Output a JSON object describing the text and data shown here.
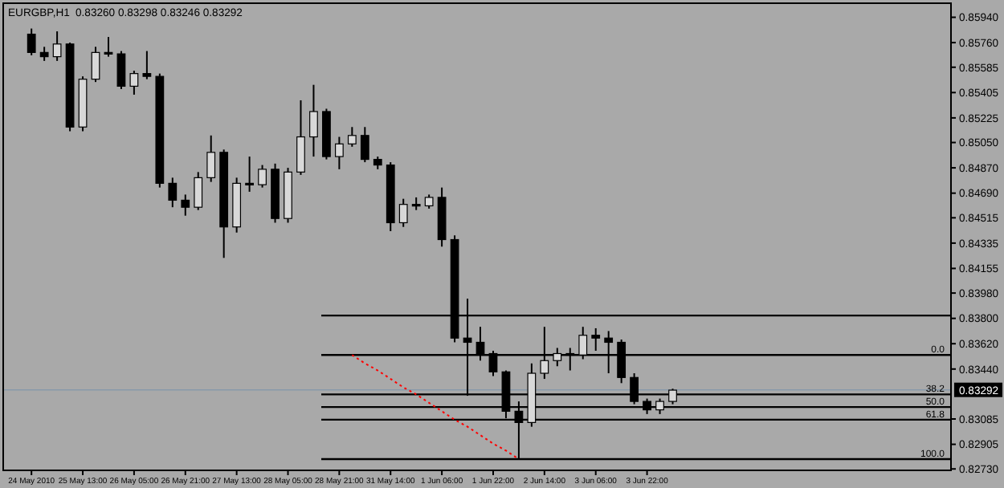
{
  "chart_data": {
    "type": "candlestick",
    "title": "EURGBP,H1",
    "subtitle": "0.83260 0.83298 0.83246 0.83292",
    "categories": [
      "24 May 2010",
      null,
      null,
      null,
      "25 May 13:00",
      null,
      null,
      null,
      "26 May 05:00",
      null,
      null,
      null,
      "26 May 21:00",
      null,
      null,
      null,
      "27 May 13:00",
      null,
      null,
      null,
      "28 May 05:00",
      null,
      null,
      null,
      "28 May 21:00",
      null,
      null,
      null,
      "31 May 14:00",
      null,
      null,
      null,
      "1 Jun 06:00",
      null,
      null,
      null,
      "1 Jun 22:00",
      null,
      null,
      null,
      "2 Jun 14:00",
      null,
      null,
      null,
      "3 Jun 06:00",
      null,
      null,
      null,
      "3 Jun 22:00",
      null,
      null,
      null,
      null,
      null,
      null,
      null,
      null,
      null,
      null,
      null,
      null,
      null,
      null,
      null,
      null,
      null,
      null,
      null,
      null,
      null,
      null,
      null
    ],
    "series": [
      {
        "type": "line",
        "color": "#ff0000",
        "line_style": "dotted",
        "values": [
          null,
          null,
          null,
          null,
          null,
          null,
          null,
          null,
          null,
          null,
          null,
          null,
          null,
          null,
          null,
          null,
          null,
          null,
          null,
          null,
          null,
          null,
          null,
          null,
          null,
          0.8354,
          0.8348,
          0.8343,
          0.8337,
          0.8331,
          0.8326,
          0.832,
          0.8314,
          0.8308,
          0.8303,
          0.8297,
          0.8291,
          0.8286,
          0.828,
          null,
          null,
          null,
          null,
          null,
          null,
          null,
          null,
          null,
          null,
          null,
          null,
          null,
          null,
          null,
          null,
          null,
          null,
          null,
          null,
          null,
          null,
          null,
          null,
          null,
          null,
          null,
          null,
          null,
          null,
          null,
          null,
          null
        ]
      }
    ],
    "color": "#000000",
    "ohlc": [
      [
        0.8582,
        0.8586,
        0.8567,
        0.8569
      ],
      [
        0.8569,
        0.8573,
        0.8563,
        0.8566
      ],
      [
        0.8566,
        0.8584,
        0.8563,
        0.8575
      ],
      [
        0.8575,
        0.8576,
        0.8513,
        0.8516
      ],
      [
        0.8516,
        0.8552,
        0.8513,
        0.855
      ],
      [
        0.855,
        0.8573,
        0.8548,
        0.8569
      ],
      [
        0.8569,
        0.858,
        0.8566,
        0.8568
      ],
      [
        0.8568,
        0.857,
        0.8543,
        0.8545
      ],
      [
        0.8545,
        0.8556,
        0.8539,
        0.8554
      ],
      [
        0.8554,
        0.857,
        0.855,
        0.8552
      ],
      [
        0.8552,
        0.8554,
        0.8473,
        0.8476
      ],
      [
        0.8476,
        0.848,
        0.8459,
        0.8464
      ],
      [
        0.8464,
        0.8468,
        0.8453,
        0.8459
      ],
      [
        0.8459,
        0.8484,
        0.8457,
        0.848
      ],
      [
        0.848,
        0.851,
        0.8477,
        0.8498
      ],
      [
        0.8498,
        0.85,
        0.8423,
        0.8445
      ],
      [
        0.8445,
        0.848,
        0.8441,
        0.8476
      ],
      [
        0.8476,
        0.8495,
        0.847,
        0.8475
      ],
      [
        0.8475,
        0.8489,
        0.8473,
        0.8486
      ],
      [
        0.8486,
        0.849,
        0.8448,
        0.8451
      ],
      [
        0.8451,
        0.8487,
        0.8448,
        0.8484
      ],
      [
        0.8484,
        0.8535,
        0.8482,
        0.8509
      ],
      [
        0.8509,
        0.8546,
        0.8495,
        0.8527
      ],
      [
        0.8527,
        0.8529,
        0.8493,
        0.8495
      ],
      [
        0.8495,
        0.8509,
        0.8486,
        0.8504
      ],
      [
        0.8504,
        0.8516,
        0.8502,
        0.851
      ],
      [
        0.851,
        0.8516,
        0.8491,
        0.8493
      ],
      [
        0.8493,
        0.8495,
        0.8486,
        0.8489
      ],
      [
        0.8489,
        0.8491,
        0.8442,
        0.8448
      ],
      [
        0.8448,
        0.8465,
        0.8445,
        0.8461
      ],
      [
        0.8461,
        0.8466,
        0.8457,
        0.846
      ],
      [
        0.846,
        0.8468,
        0.8458,
        0.8466
      ],
      [
        0.8466,
        0.8473,
        0.8431,
        0.8436
      ],
      [
        0.8436,
        0.8439,
        0.8363,
        0.8366
      ],
      [
        0.8366,
        0.8394,
        0.8325,
        0.8363
      ],
      [
        0.8363,
        0.8374,
        0.835,
        0.8355
      ],
      [
        0.8355,
        0.8357,
        0.8339,
        0.8342
      ],
      [
        0.8342,
        0.8343,
        0.8309,
        0.8314
      ],
      [
        0.8314,
        0.8321,
        0.828,
        0.8306
      ],
      [
        0.8306,
        0.8348,
        0.8303,
        0.8341
      ],
      [
        0.8341,
        0.8374,
        0.8337,
        0.835
      ],
      [
        0.835,
        0.8359,
        0.8346,
        0.8355
      ],
      [
        0.8355,
        0.8359,
        0.8343,
        0.8354
      ],
      [
        0.8354,
        0.8374,
        0.8351,
        0.8368
      ],
      [
        0.8368,
        0.8373,
        0.8357,
        0.8366
      ],
      [
        0.8366,
        0.8371,
        0.8341,
        0.8363
      ],
      [
        0.8363,
        0.8365,
        0.8334,
        0.8338
      ],
      [
        0.8338,
        0.8341,
        0.8319,
        0.8321
      ],
      [
        0.8321,
        0.8323,
        0.8312,
        0.8315
      ],
      [
        0.8315,
        0.8323,
        0.8312,
        0.8321
      ],
      [
        0.8321,
        0.833,
        0.8319,
        0.8329
      ],
      null,
      null,
      null,
      null,
      null,
      null,
      null,
      null,
      null,
      null,
      null,
      null,
      null,
      null,
      null,
      null,
      null,
      null,
      null,
      null,
      null
    ],
    "ylim": [
      0.8272,
      0.8604
    ],
    "yticks": [
      {
        "value": 0.8594,
        "label": "0.85940"
      },
      {
        "value": 0.8576,
        "label": "0.85760"
      },
      0.85585,
      0.85405,
      0.85225,
      {
        "value": 0.8505,
        "label": "0.85050"
      },
      {
        "value": 0.8487,
        "label": "0.84870"
      },
      {
        "value": 0.8469,
        "label": "0.84690"
      },
      0.84515,
      0.84335,
      0.84155,
      {
        "value": 0.8398,
        "label": "0.83980"
      },
      {
        "value": 0.838,
        "label": "0.83800"
      },
      {
        "value": 0.8362,
        "label": "0.83620"
      },
      {
        "value": 0.8344,
        "label": "0.83440"
      },
      0.83085,
      0.82905,
      {
        "value": 0.8273,
        "label": "0.82730"
      }
    ],
    "ref_lines": [
      {
        "axis": "y",
        "value": 0.83292,
        "label": "0.83292",
        "color": "#8899aa"
      },
      {
        "axis": "y",
        "value": 0.8382,
        "color": "#000000"
      },
      {
        "axis": "y",
        "value": 0.8354,
        "color": "#000000"
      },
      {
        "axis": "y",
        "value": 0.8326,
        "color": "#000000"
      },
      {
        "axis": "y",
        "value": 0.8317,
        "color": "#000000"
      },
      {
        "axis": "y",
        "value": 0.8308,
        "color": "#000000"
      },
      {
        "axis": "y",
        "value": 0.828,
        "color": "#000000"
      }
    ],
    "annotations": [
      {
        "text": "0.0",
        "y": 0.8354
      },
      {
        "text": "38.2",
        "y": 0.8326
      },
      {
        "text": "50.0",
        "y": 0.8317
      },
      {
        "text": "61.8",
        "y": 0.8308
      },
      {
        "text": "100.0",
        "y": 0.828
      }
    ],
    "grid": false,
    "legend": false
  }
}
